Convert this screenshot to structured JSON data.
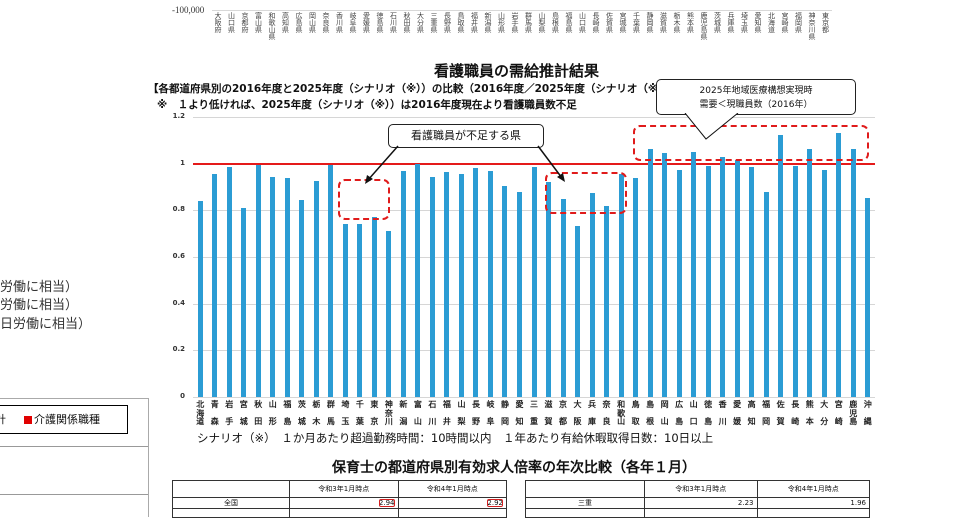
{
  "top_strip": {
    "neg_tick": "-100,000",
    "prefectures_sorted": [
      "大阪府",
      "山口県",
      "京都府",
      "富山県",
      "和歌山県",
      "高知県",
      "広島県",
      "岡山県",
      "奈良県",
      "香川県",
      "岐阜県",
      "愛媛県",
      "徳島県",
      "石川県",
      "秋田県",
      "大分県",
      "三重県",
      "長野県",
      "鳥取県",
      "福井県",
      "新潟県",
      "山形県",
      "岩手県",
      "群馬県",
      "山梨県",
      "島根県",
      "福島県",
      "山口県",
      "長崎県",
      "佐賀県",
      "宮城県",
      "千葉県",
      "静岡県",
      "滋賀県",
      "栃木県",
      "熊本県",
      "鹿児島県",
      "茨城県",
      "兵庫県",
      "埼玉県",
      "愛知県",
      "北海道",
      "宮崎県",
      "福岡県",
      "神奈川県",
      "東京都"
    ]
  },
  "left_partial": {
    "lines": [
      "労働に相当）",
      "労働に相当）",
      "日労働に相当）"
    ],
    "legend_prefix": "計",
    "legend_item": "介護関係職種",
    "legend_color": "#e00000"
  },
  "chart_data": {
    "type": "bar",
    "title": "看護職員の需給推計結果",
    "subtitle": "【各都道府県別の2016年度と2025年度（シナリオ（※））の比較（2016年度／2025年度（シナリオ（※））】",
    "note": "※　１より低ければ、2025年度（シナリオ（※））は2016年度現在より看護職員数不足",
    "xlabel": "",
    "ylabel": "",
    "ylim": [
      0,
      1.2
    ],
    "yticks": [
      "0",
      "0.2",
      "0.4",
      "0.6",
      "0.8",
      "1",
      "1.2"
    ],
    "reference_line": {
      "value": 1.0,
      "color": "#e41a1a"
    },
    "bar_color": "#2b9cd4",
    "grid": true,
    "categories": [
      "北海道",
      "青森",
      "岩手",
      "宮城",
      "秋田",
      "山形",
      "福島",
      "茨城",
      "栃木",
      "群馬",
      "埼玉",
      "千葉",
      "東京",
      "神奈川",
      "新潟",
      "富山",
      "石川",
      "福井",
      "山梨",
      "長野",
      "岐阜",
      "静岡",
      "愛知",
      "三重",
      "滋賀",
      "京都",
      "大阪",
      "兵庫",
      "奈良",
      "和歌山",
      "鳥取",
      "島根",
      "岡山",
      "広島",
      "山口",
      "徳島",
      "香川",
      "愛媛",
      "高知",
      "福岡",
      "佐賀",
      "長崎",
      "熊本",
      "大分",
      "宮崎",
      "鹿児島",
      "沖縄"
    ],
    "values": [
      0.84,
      0.955,
      0.985,
      0.81,
      0.995,
      0.945,
      0.94,
      0.845,
      0.925,
      0.995,
      0.74,
      0.74,
      0.77,
      0.71,
      0.97,
      1.0,
      0.945,
      0.965,
      0.955,
      0.98,
      0.97,
      0.905,
      0.88,
      0.985,
      0.92,
      0.85,
      0.735,
      0.875,
      0.82,
      0.955,
      0.94,
      1.065,
      1.045,
      0.975,
      1.05,
      0.99,
      1.03,
      1.015,
      0.985,
      0.88,
      1.125,
      0.99,
      1.065,
      0.975,
      1.13,
      1.065,
      0.855
    ],
    "annotations": [
      {
        "text": "看護職員が不足する県",
        "type": "callout"
      },
      {
        "text": "2025年地域医療構想実現時\n需要＜現職員数（2016年）",
        "type": "callout"
      }
    ]
  },
  "axis_labels_vertical": [
    "北海道",
    "青森",
    "岩手",
    "宮城",
    "秋田",
    "山形",
    "福島",
    "茨城",
    "栃木",
    "群馬",
    "埼玉",
    "千葉",
    "東京",
    "神奈川",
    "新潟",
    "富山",
    "石川",
    "福井",
    "山梨",
    "長野",
    "岐阜",
    "静岡",
    "愛知",
    "三重",
    "滋賀",
    "京都",
    "大阪",
    "兵庫",
    "奈良",
    "和歌山",
    "鳥取",
    "島根",
    "岡山",
    "広島",
    "山口",
    "徳島",
    "香川",
    "愛媛",
    "高知",
    "福岡",
    "佐賀",
    "長崎",
    "熊本",
    "大分",
    "宮崎",
    "鹿児島",
    "沖縄"
  ],
  "callouts": {
    "shortage": "看護職員が不足する県",
    "surplus_line1": "2025年地域医療構想実現時",
    "surplus_line2": "需要＜現職員数（2016年）"
  },
  "scenario_text": "シナリオ（※）　１か月あたり超過勤務時間：10時間以内　１年あたり有給休暇取得日数：10日以上",
  "table_section": {
    "title": "保育士の都道府県別有効求人倍率の年次比較（各年１月）",
    "left_table": {
      "headers": [
        "",
        "令和3年1月時点",
        "令和4年1月時点"
      ],
      "rows": [
        [
          "全国",
          "2.94",
          "2.92"
        ]
      ]
    },
    "right_table": {
      "headers": [
        "",
        "令和3年1月時点",
        "令和4年1月時点"
      ],
      "rows": [
        [
          "三重",
          "2.23",
          "1.96"
        ]
      ]
    }
  }
}
